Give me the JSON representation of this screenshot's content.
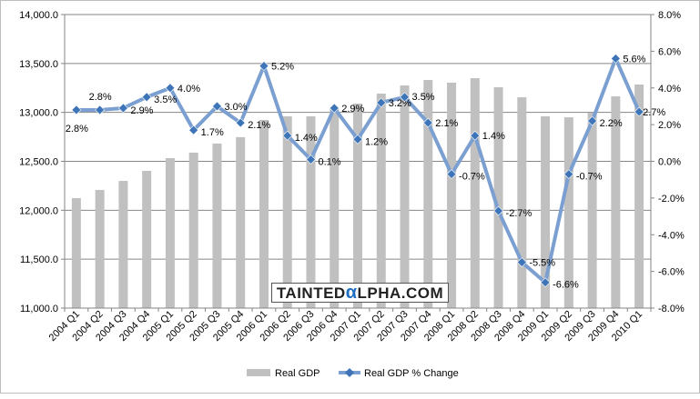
{
  "chart_data": {
    "type": "bar+line",
    "categories": [
      "2004 Q1",
      "2004 Q2",
      "2004 Q3",
      "2004 Q4",
      "2005 Q1",
      "2005 Q2",
      "2005 Q3",
      "2005 Q4",
      "2006 Q1",
      "2006 Q2",
      "2006 Q3",
      "2006 Q4",
      "2007 Q1",
      "2007 Q2",
      "2007 Q3",
      "2007 Q4",
      "2008 Q1",
      "2008 Q2",
      "2008 Q3",
      "2008 Q4",
      "2009 Q1",
      "2009 Q2",
      "2009 Q3",
      "2009 Q4",
      "2010 Q1"
    ],
    "series": [
      {
        "name": "Real GDP",
        "type": "bar",
        "axis": "left",
        "color": "#c0c0c0",
        "values": [
          12124,
          12208,
          12300,
          12403,
          12533,
          12589,
          12682,
          12747,
          12923,
          12960,
          12960,
          13053,
          13090,
          13192,
          13276,
          13331,
          13304,
          13350,
          13257,
          13155,
          12960,
          12950,
          12997,
          13164,
          13285
        ]
      },
      {
        "name": "Real GDP % Change",
        "type": "line",
        "axis": "right",
        "color": "#7a9fd0",
        "marker_color": "#3d75b8",
        "values": [
          2.8,
          2.8,
          2.9,
          3.5,
          4.0,
          1.7,
          3.0,
          2.1,
          5.2,
          1.4,
          0.1,
          2.9,
          1.2,
          3.2,
          3.5,
          2.1,
          -0.7,
          1.4,
          -2.7,
          -5.5,
          -6.6,
          -0.7,
          2.2,
          5.6,
          2.7
        ],
        "labels": [
          "2.8%",
          "2.8%",
          "2.9%",
          "3.5%",
          "4.0%",
          "1.7%",
          "3.0%",
          "2.1%",
          "5.2%",
          "1.4%",
          "0.1%",
          "2.9%",
          "1.2%",
          "3.2%",
          "3.5%",
          "2.1%",
          "-0.7%",
          "1.4%",
          "-2.7%",
          "-5.5%",
          "-6.6%",
          "-0.7%",
          "2.2%",
          "5.6%",
          "2.7%"
        ]
      }
    ],
    "left_axis": {
      "ylim": [
        11000,
        14000
      ],
      "ticks": [
        "11,000.0",
        "11,500.0",
        "12,000.0",
        "12,500.0",
        "13,000.0",
        "13,500.0",
        "14,000.0"
      ]
    },
    "right_axis": {
      "ylim": [
        -8,
        8
      ],
      "ticks": [
        "-8.0%",
        "-6.0%",
        "-4.0%",
        "-2.0%",
        "0.0%",
        "2.0%",
        "4.0%",
        "6.0%",
        "8.0%"
      ]
    },
    "grid": true,
    "legend": "bottom",
    "title": "",
    "xlabel": "",
    "ylabel": ""
  },
  "watermark": {
    "pre": "TAINTED",
    "alpha": "α",
    "post": "LPHA.COM"
  }
}
